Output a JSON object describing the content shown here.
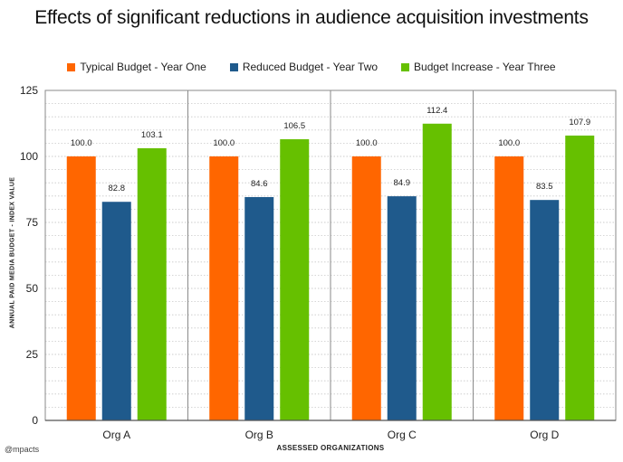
{
  "credit": "@mpacts",
  "colors": {
    "series1": "#ff6600",
    "series2": "#1f5a8c",
    "series3": "#66c000"
  },
  "chart_data": {
    "type": "bar",
    "title": "Effects of significant reductions in audience acquisition investments",
    "xlabel": "ASSESSED ORGANIZATIONS",
    "ylabel": "ANNUAL PAID MEDIA BUDGET - INDEX VALUE",
    "ylim": [
      0,
      125
    ],
    "yticks": [
      0,
      25,
      50,
      75,
      100,
      125
    ],
    "categories": [
      "Org A",
      "Org B",
      "Org C",
      "Org D"
    ],
    "legend_position": "top",
    "grid": true,
    "series": [
      {
        "name": "Typical Budget - Year One",
        "values": [
          100.0,
          100.0,
          100.0,
          100.0
        ],
        "labels": [
          "100.0",
          "100.0",
          "100.0",
          "100.0"
        ],
        "color": "#ff6600"
      },
      {
        "name": "Reduced Budget - Year Two",
        "values": [
          82.8,
          84.6,
          84.9,
          83.5
        ],
        "labels": [
          "82.8",
          "84.6",
          "84.9",
          "83.5"
        ],
        "color": "#1f5a8c"
      },
      {
        "name": "Budget Increase - Year Three",
        "values": [
          103.1,
          106.5,
          112.4,
          107.9
        ],
        "labels": [
          "103.1",
          "106.5",
          "112.4",
          "107.9"
        ],
        "color": "#66c000"
      }
    ]
  }
}
